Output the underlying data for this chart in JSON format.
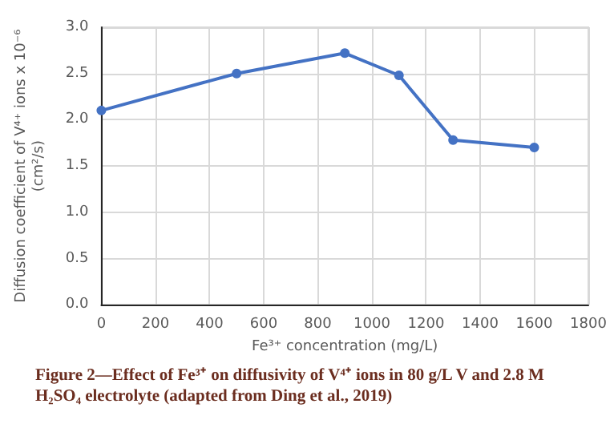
{
  "chart_data": {
    "type": "line",
    "xlabel": "Fe³⁺ concentration (mg/L)",
    "ylabel": "Diffusion coefficient of V⁴⁺ ions x 10⁻⁶\n(cm²/s)",
    "annotations": [
      "Figure 2—Effect of Fe³⁺ on diffusivity of V⁴⁺ ions in 80 g/L V and 2.8 M H₂SO₄  electrolyte (adapted from Ding et al., 2019)"
    ],
    "x": [
      0,
      500,
      900,
      1100,
      1300,
      1600
    ],
    "series": [
      {
        "color": "#4472c4",
        "values": [
          2.1,
          2.5,
          2.72,
          2.48,
          1.78,
          1.7
        ]
      }
    ],
    "xlim": [
      0,
      1800
    ],
    "xticks": [
      0,
      200,
      400,
      600,
      800,
      1000,
      1200,
      1400,
      1600,
      1800
    ],
    "ylim": [
      0,
      3
    ],
    "yticks": [
      {
        "value": 0,
        "label": "0.0"
      },
      {
        "value": 0.5,
        "label": "0.5"
      },
      {
        "value": 1,
        "label": "1.0"
      },
      {
        "value": 1.5,
        "label": "1.5"
      },
      {
        "value": 2,
        "label": "2.0"
      },
      {
        "value": 2.5,
        "label": "2.5"
      },
      {
        "value": 3,
        "label": "3.0"
      }
    ],
    "grid": true,
    "marker": "circle",
    "line_style": "solid"
  }
}
